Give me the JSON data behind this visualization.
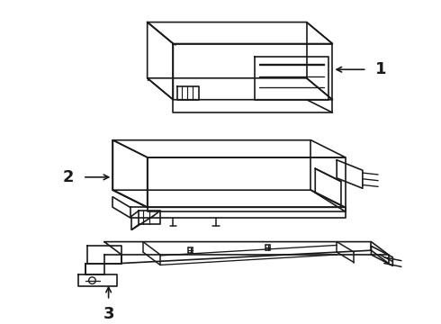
{
  "bg_color": "#ffffff",
  "line_color": "#1a1a1a",
  "line_width": 1.2,
  "label_color": "#000000",
  "labels": [
    "1",
    "2",
    "3"
  ],
  "figsize": [
    4.9,
    3.6
  ],
  "dpi": 100
}
